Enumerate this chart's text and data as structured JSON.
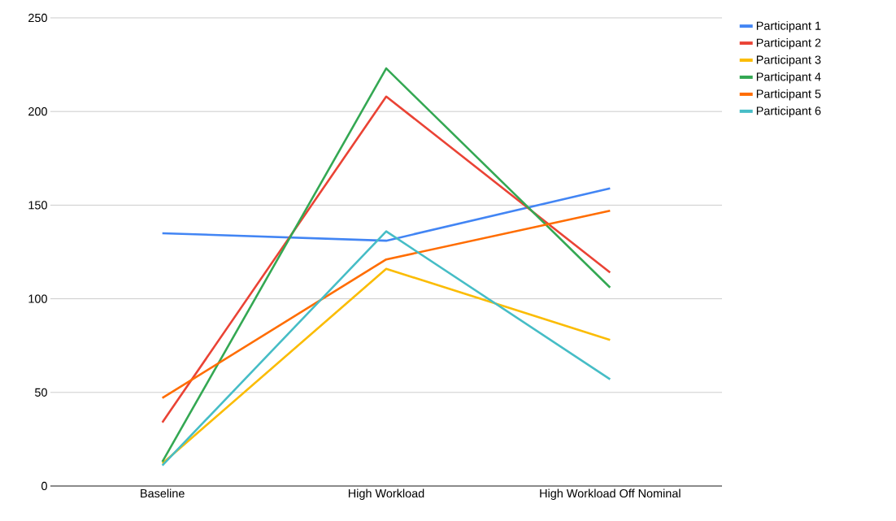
{
  "chart_data": {
    "type": "line",
    "categories": [
      "Baseline",
      "High Workload",
      "High Workload Off Nominal"
    ],
    "series": [
      {
        "name": "Participant 1",
        "color": "#4285f4",
        "values": [
          135,
          131,
          159
        ]
      },
      {
        "name": "Participant 2",
        "color": "#ea4335",
        "values": [
          34,
          208,
          114
        ]
      },
      {
        "name": "Participant 3",
        "color": "#fbbc04",
        "values": [
          12,
          116,
          78
        ]
      },
      {
        "name": "Participant 4",
        "color": "#34a853",
        "values": [
          13,
          223,
          106
        ]
      },
      {
        "name": "Participant 5",
        "color": "#ff6d01",
        "values": [
          47,
          121,
          147
        ]
      },
      {
        "name": "Participant 6",
        "color": "#46bdc6",
        "values": [
          11,
          136,
          57
        ]
      }
    ],
    "ylim": [
      0,
      250
    ],
    "yticks": [
      0,
      50,
      100,
      150,
      200,
      250
    ],
    "grid": "y",
    "legend": "top right",
    "marker": "none",
    "line_style": "solid"
  }
}
